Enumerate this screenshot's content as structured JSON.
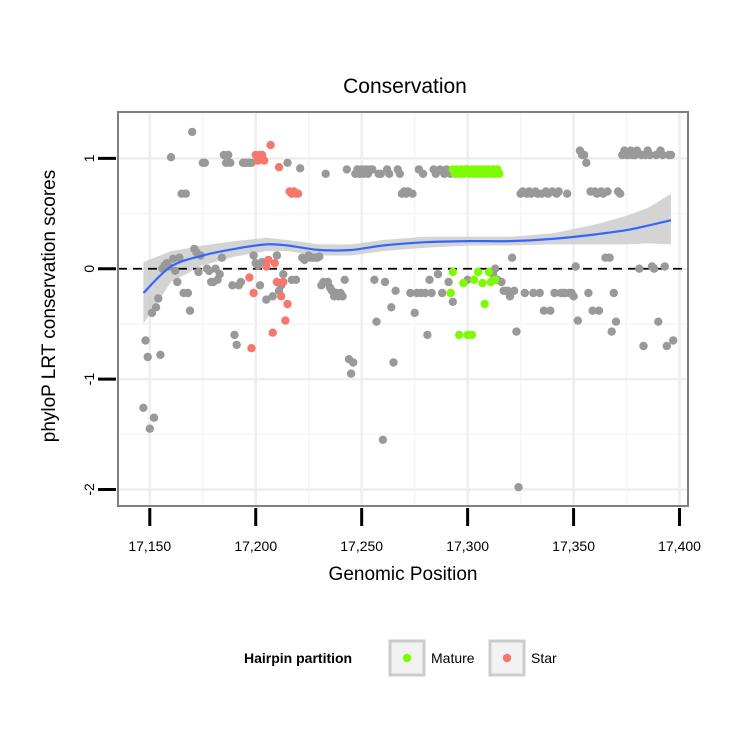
{
  "chart_data": {
    "type": "scatter",
    "title": "Conservation",
    "xlabel": "Genomic Position",
    "ylabel": "phyloP LRT conservation scores",
    "xlim": [
      17135,
      17404
    ],
    "ylim": [
      -2.15,
      1.42
    ],
    "x_ticks": [
      17150,
      17200,
      17250,
      17300,
      17350,
      17400
    ],
    "x_tick_labels": [
      "17,150",
      "17,200",
      "17,250",
      "17,300",
      "17,350",
      "17,400"
    ],
    "y_ticks": [
      -2,
      -1,
      0,
      1
    ],
    "y_tick_labels": [
      "-2",
      "-1",
      "0",
      "1"
    ],
    "reference_line": {
      "y": 0,
      "style": "dashed"
    },
    "legend": {
      "title": "Hairpin partition",
      "position": "bottom",
      "entries": [
        {
          "label": "Mature",
          "color": "#7cfc00"
        },
        {
          "label": "Star",
          "color": "#f8766d"
        }
      ]
    },
    "colors": {
      "Other": "#999999",
      "Mature": "#7cfc00",
      "Star": "#f8766d",
      "smooth": "#3366ff",
      "band": "#cccccc"
    },
    "smooth": {
      "x": [
        17147,
        17160,
        17175,
        17190,
        17205,
        17215,
        17230,
        17245,
        17260,
        17280,
        17300,
        17320,
        17340,
        17360,
        17375,
        17385,
        17396
      ],
      "y": [
        -0.22,
        0.02,
        0.12,
        0.18,
        0.22,
        0.21,
        0.17,
        0.17,
        0.21,
        0.24,
        0.25,
        0.25,
        0.27,
        0.31,
        0.35,
        0.39,
        0.44
      ],
      "lower": [
        -0.5,
        -0.12,
        0.03,
        0.11,
        0.16,
        0.16,
        0.12,
        0.12,
        0.16,
        0.19,
        0.21,
        0.21,
        0.22,
        0.22,
        0.22,
        0.23,
        0.22
      ],
      "upper": [
        0.06,
        0.16,
        0.21,
        0.25,
        0.28,
        0.26,
        0.22,
        0.22,
        0.26,
        0.29,
        0.29,
        0.29,
        0.32,
        0.4,
        0.48,
        0.55,
        0.68
      ]
    },
    "series": [
      {
        "name": "Other",
        "points": [
          [
            17147,
            -1.26
          ],
          [
            17148,
            -0.65
          ],
          [
            17149,
            -0.8
          ],
          [
            17150,
            -1.45
          ],
          [
            17151,
            -0.4
          ],
          [
            17152,
            -1.35
          ],
          [
            17153,
            -0.35
          ],
          [
            17154,
            -0.27
          ],
          [
            17155,
            -0.78
          ],
          [
            17156,
            0.0
          ],
          [
            17157,
            0.03
          ],
          [
            17158,
            0.05
          ],
          [
            17159,
            0.02
          ],
          [
            17160,
            1.01
          ],
          [
            17161,
            0.09
          ],
          [
            17162,
            -0.02
          ],
          [
            17163,
            -0.12
          ],
          [
            17164,
            0.1
          ],
          [
            17165,
            0.68
          ],
          [
            17166,
            -0.22
          ],
          [
            17167,
            0.68
          ],
          [
            17168,
            -0.22
          ],
          [
            17169,
            -0.38
          ],
          [
            17170,
            1.24
          ],
          [
            17171,
            0.18
          ],
          [
            17172,
            0.15
          ],
          [
            17173,
            -0.03
          ],
          [
            17174,
            0.12
          ],
          [
            17175,
            0.96
          ],
          [
            17176,
            0.96
          ],
          [
            17177,
            0.0
          ],
          [
            17178,
            -0.02
          ],
          [
            17179,
            -0.12
          ],
          [
            17180,
            -0.12
          ],
          [
            17181,
            0.0
          ],
          [
            17182,
            -0.1
          ],
          [
            17183,
            -0.05
          ],
          [
            17184,
            0.1
          ],
          [
            17185,
            1.03
          ],
          [
            17186,
            0.96
          ],
          [
            17187,
            1.03
          ],
          [
            17188,
            0.96
          ],
          [
            17189,
            -0.15
          ],
          [
            17190,
            -0.6
          ],
          [
            17191,
            -0.69
          ],
          [
            17192,
            -0.15
          ],
          [
            17193,
            -0.12
          ],
          [
            17194,
            0.96
          ],
          [
            17195,
            0.96
          ],
          [
            17196,
            0.96
          ],
          [
            17197,
            0.96
          ],
          [
            17198,
            0.96
          ],
          [
            17199,
            0.12
          ],
          [
            17200,
            0.05
          ],
          [
            17201,
            0.03
          ],
          [
            17202,
            -0.15
          ],
          [
            17203,
            0.06
          ],
          [
            17205,
            -0.28
          ],
          [
            17208,
            -0.25
          ],
          [
            17210,
            0.12
          ],
          [
            17211,
            -0.2
          ],
          [
            17212,
            -0.15
          ],
          [
            17213,
            -0.05
          ],
          [
            17215,
            0.96
          ],
          [
            17217,
            -0.1
          ],
          [
            17219,
            -0.1
          ],
          [
            17221,
            0.91
          ],
          [
            17222,
            0.1
          ],
          [
            17223,
            0.08
          ],
          [
            17224,
            0.1
          ],
          [
            17225,
            0.12
          ],
          [
            17226,
            0.1
          ],
          [
            17227,
            0.1
          ],
          [
            17228,
            0.1
          ],
          [
            17229,
            0.1
          ],
          [
            17230,
            0.11
          ],
          [
            17231,
            -0.15
          ],
          [
            17232,
            -0.12
          ],
          [
            17233,
            0.86
          ],
          [
            17234,
            -0.12
          ],
          [
            17235,
            -0.17
          ],
          [
            17236,
            -0.2
          ],
          [
            17237,
            -0.25
          ],
          [
            17238,
            -0.22
          ],
          [
            17239,
            -0.25
          ],
          [
            17240,
            -0.22
          ],
          [
            17241,
            -0.25
          ],
          [
            17242,
            -0.1
          ],
          [
            17243,
            0.9
          ],
          [
            17244,
            -0.82
          ],
          [
            17245,
            -0.95
          ],
          [
            17246,
            -0.85
          ],
          [
            17247,
            0.86
          ],
          [
            17248,
            0.9
          ],
          [
            17249,
            0.86
          ],
          [
            17250,
            0.9
          ],
          [
            17251,
            0.86
          ],
          [
            17252,
            0.9
          ],
          [
            17253,
            0.86
          ],
          [
            17254,
            0.9
          ],
          [
            17255,
            0.9
          ],
          [
            17256,
            -0.1
          ],
          [
            17257,
            -0.48
          ],
          [
            17258,
            0.86
          ],
          [
            17259,
            0.86
          ],
          [
            17260,
            -1.55
          ],
          [
            17261,
            -0.12
          ],
          [
            17262,
            0.9
          ],
          [
            17263,
            0.86
          ],
          [
            17264,
            -0.35
          ],
          [
            17265,
            -0.85
          ],
          [
            17266,
            -0.2
          ],
          [
            17267,
            0.9
          ],
          [
            17268,
            0.86
          ],
          [
            17269,
            0.68
          ],
          [
            17270,
            0.7
          ],
          [
            17271,
            0.68
          ],
          [
            17272,
            0.7
          ],
          [
            17273,
            -0.22
          ],
          [
            17274,
            0.68
          ],
          [
            17275,
            -0.4
          ],
          [
            17276,
            -0.22
          ],
          [
            17277,
            0.9
          ],
          [
            17278,
            -0.22
          ],
          [
            17279,
            0.86
          ],
          [
            17280,
            -0.22
          ],
          [
            17281,
            -0.6
          ],
          [
            17282,
            -0.1
          ],
          [
            17283,
            -0.22
          ],
          [
            17284,
            0.9
          ],
          [
            17285,
            0.86
          ],
          [
            17286,
            -0.05
          ],
          [
            17287,
            0.9
          ],
          [
            17288,
            -0.22
          ],
          [
            17289,
            0.86
          ],
          [
            17290,
            0.9
          ],
          [
            17291,
            -0.12
          ],
          [
            17292,
            0.86
          ],
          [
            17293,
            -0.3
          ],
          [
            17300,
            -0.1
          ],
          [
            17312,
            -0.05
          ],
          [
            17313,
            0.0
          ],
          [
            17314,
            -0.1
          ],
          [
            17316,
            -0.12
          ],
          [
            17317,
            -0.2
          ],
          [
            17318,
            -0.2
          ],
          [
            17319,
            -0.2
          ],
          [
            17320,
            -0.25
          ],
          [
            17321,
            0.1
          ],
          [
            17322,
            -0.2
          ],
          [
            17323,
            -0.57
          ],
          [
            17324,
            -1.98
          ],
          [
            17325,
            0.68
          ],
          [
            17326,
            0.7
          ],
          [
            17327,
            -0.22
          ],
          [
            17328,
            0.68
          ],
          [
            17329,
            0.7
          ],
          [
            17330,
            0.68
          ],
          [
            17331,
            -0.22
          ],
          [
            17332,
            0.7
          ],
          [
            17333,
            0.68
          ],
          [
            17334,
            -0.22
          ],
          [
            17335,
            0.68
          ],
          [
            17336,
            -0.38
          ],
          [
            17337,
            0.7
          ],
          [
            17338,
            0.68
          ],
          [
            17339,
            -0.38
          ],
          [
            17340,
            0.7
          ],
          [
            17341,
            -0.22
          ],
          [
            17342,
            0.68
          ],
          [
            17343,
            0.7
          ],
          [
            17344,
            -0.22
          ],
          [
            17345,
            -0.22
          ],
          [
            17346,
            -0.22
          ],
          [
            17347,
            0.68
          ],
          [
            17348,
            -0.22
          ],
          [
            17349,
            -0.22
          ],
          [
            17350,
            -0.25
          ],
          [
            17351,
            0.02
          ],
          [
            17352,
            -0.47
          ],
          [
            17353,
            1.07
          ],
          [
            17354,
            1.03
          ],
          [
            17355,
            1.03
          ],
          [
            17356,
            0.96
          ],
          [
            17357,
            -0.22
          ],
          [
            17358,
            0.7
          ],
          [
            17359,
            -0.38
          ],
          [
            17360,
            0.7
          ],
          [
            17361,
            0.68
          ],
          [
            17362,
            -0.38
          ],
          [
            17363,
            0.7
          ],
          [
            17364,
            0.68
          ],
          [
            17365,
            0.1
          ],
          [
            17366,
            0.7
          ],
          [
            17367,
            0.1
          ],
          [
            17368,
            -0.57
          ],
          [
            17369,
            -0.22
          ],
          [
            17370,
            -0.48
          ],
          [
            17371,
            0.7
          ],
          [
            17372,
            0.68
          ],
          [
            17373,
            1.03
          ],
          [
            17374,
            1.07
          ],
          [
            17375,
            1.03
          ],
          [
            17376,
            1.03
          ],
          [
            17377,
            1.07
          ],
          [
            17378,
            1.03
          ],
          [
            17379,
            1.03
          ],
          [
            17380,
            1.07
          ],
          [
            17381,
            0.0
          ],
          [
            17382,
            1.03
          ],
          [
            17383,
            -0.7
          ],
          [
            17384,
            1.03
          ],
          [
            17385,
            1.07
          ],
          [
            17386,
            1.03
          ],
          [
            17387,
            0.02
          ],
          [
            17388,
            0.0
          ],
          [
            17389,
            1.03
          ],
          [
            17390,
            -0.48
          ],
          [
            17391,
            1.07
          ],
          [
            17392,
            1.03
          ],
          [
            17393,
            0.02
          ],
          [
            17394,
            -0.7
          ],
          [
            17395,
            1.03
          ],
          [
            17396,
            1.03
          ],
          [
            17397,
            -0.65
          ]
        ]
      },
      {
        "name": "Mature",
        "points": [
          [
            17293,
            0.9
          ],
          [
            17294,
            0.86
          ],
          [
            17295,
            0.9
          ],
          [
            17296,
            0.86
          ],
          [
            17297,
            0.9
          ],
          [
            17298,
            0.86
          ],
          [
            17299,
            0.9
          ],
          [
            17300,
            0.9
          ],
          [
            17301,
            0.86
          ],
          [
            17302,
            0.9
          ],
          [
            17303,
            0.86
          ],
          [
            17304,
            0.9
          ],
          [
            17305,
            0.86
          ],
          [
            17306,
            0.9
          ],
          [
            17307,
            0.86
          ],
          [
            17308,
            0.9
          ],
          [
            17309,
            0.86
          ],
          [
            17310,
            0.9
          ],
          [
            17311,
            0.86
          ],
          [
            17312,
            0.9
          ],
          [
            17313,
            0.86
          ],
          [
            17314,
            0.9
          ],
          [
            17315,
            0.86
          ],
          [
            17292,
            -0.22
          ],
          [
            17293,
            -0.03
          ],
          [
            17296,
            -0.6
          ],
          [
            17298,
            -0.13
          ],
          [
            17300,
            -0.6
          ],
          [
            17302,
            -0.6
          ],
          [
            17303,
            -0.1
          ],
          [
            17305,
            -0.03
          ],
          [
            17307,
            -0.13
          ],
          [
            17308,
            -0.32
          ],
          [
            17310,
            -0.03
          ],
          [
            17311,
            -0.12
          ],
          [
            17313,
            -0.1
          ]
        ]
      },
      {
        "name": "Star",
        "points": [
          [
            17197,
            -0.08
          ],
          [
            17198,
            -0.72
          ],
          [
            17199,
            -0.22
          ],
          [
            17200,
            1.03
          ],
          [
            17201,
            0.98
          ],
          [
            17202,
            1.03
          ],
          [
            17203,
            1.03
          ],
          [
            17204,
            0.98
          ],
          [
            17205,
            0.02
          ],
          [
            17206,
            0.08
          ],
          [
            17207,
            1.12
          ],
          [
            17208,
            -0.58
          ],
          [
            17209,
            0.05
          ],
          [
            17210,
            -0.12
          ],
          [
            17211,
            0.92
          ],
          [
            17212,
            -0.25
          ],
          [
            17213,
            -0.12
          ],
          [
            17214,
            -0.47
          ],
          [
            17215,
            -0.32
          ],
          [
            17216,
            0.7
          ],
          [
            17217,
            0.68
          ],
          [
            17218,
            0.7
          ],
          [
            17219,
            0.68
          ],
          [
            17220,
            0.68
          ]
        ]
      }
    ]
  }
}
